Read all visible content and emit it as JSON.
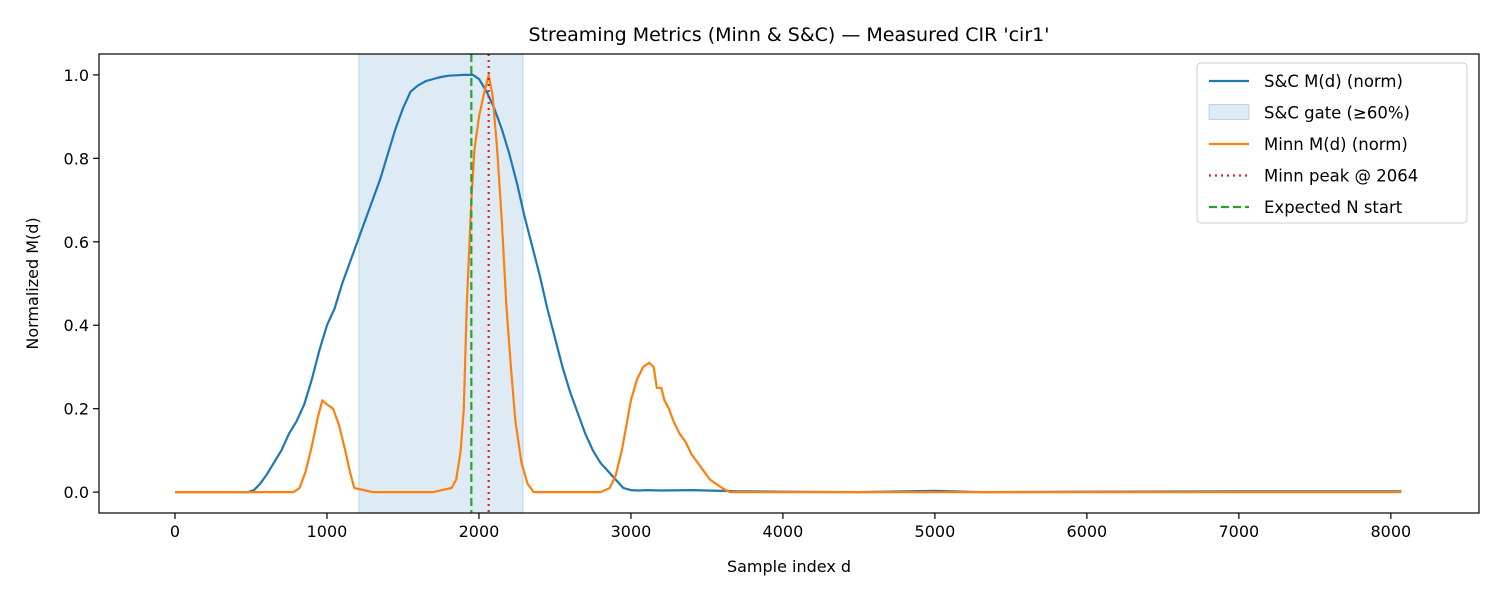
{
  "chart_data": {
    "type": "line",
    "title": "Streaming Metrics (Minn & S&C) — Measured CIR 'cir1'",
    "xlabel": "Sample index d",
    "ylabel": "Normalized M(d)",
    "xlim": [
      -500,
      8580
    ],
    "ylim": [
      -0.05,
      1.05
    ],
    "xticks": [
      0,
      1000,
      2000,
      3000,
      4000,
      5000,
      6000,
      7000,
      8000
    ],
    "yticks": [
      0.0,
      0.2,
      0.4,
      0.6,
      0.8,
      1.0
    ],
    "xtick_labels": [
      "0",
      "1000",
      "2000",
      "3000",
      "4000",
      "5000",
      "6000",
      "7000",
      "8000"
    ],
    "ytick_labels": [
      "0.0",
      "0.2",
      "0.4",
      "0.6",
      "0.8",
      "1.0"
    ],
    "grid": false,
    "legend_position": "top-right",
    "colors": {
      "sc": "#1f77b4",
      "gate": "#1f77b4",
      "minn": "#ff7f0e",
      "minn_peak": "#d62728",
      "expected": "#2ca02c"
    },
    "series": [
      {
        "name": "S&C M(d) (norm)",
        "x": [
          0,
          480,
          520,
          560,
          600,
          650,
          700,
          750,
          800,
          850,
          900,
          950,
          1000,
          1050,
          1100,
          1150,
          1200,
          1250,
          1300,
          1350,
          1400,
          1450,
          1500,
          1550,
          1600,
          1650,
          1700,
          1750,
          1800,
          1850,
          1900,
          1950,
          1960,
          2000,
          2050,
          2100,
          2150,
          2200,
          2250,
          2300,
          2350,
          2400,
          2450,
          2500,
          2550,
          2600,
          2650,
          2700,
          2750,
          2800,
          2850,
          2900,
          2950,
          3000,
          3050,
          3100,
          3200,
          3400,
          3600,
          3700,
          4000,
          4500,
          5000,
          5300,
          6000,
          7000,
          8070
        ],
        "y": [
          0.0,
          0.0,
          0.005,
          0.02,
          0.04,
          0.07,
          0.1,
          0.14,
          0.17,
          0.21,
          0.27,
          0.34,
          0.4,
          0.44,
          0.5,
          0.55,
          0.6,
          0.65,
          0.7,
          0.75,
          0.81,
          0.87,
          0.92,
          0.96,
          0.975,
          0.985,
          0.99,
          0.995,
          0.998,
          0.999,
          1.0,
          1.0,
          1.0,
          0.99,
          0.96,
          0.92,
          0.87,
          0.81,
          0.74,
          0.66,
          0.59,
          0.52,
          0.44,
          0.37,
          0.3,
          0.24,
          0.19,
          0.14,
          0.1,
          0.07,
          0.05,
          0.03,
          0.01,
          0.005,
          0.004,
          0.005,
          0.004,
          0.005,
          0.003,
          0.002,
          0.001,
          0.0,
          0.003,
          0.0,
          0.001,
          0.002,
          0.002
        ]
      },
      {
        "name": "Minn M(d) (norm)",
        "x": [
          0,
          780,
          820,
          860,
          900,
          940,
          970,
          1000,
          1040,
          1080,
          1120,
          1150,
          1180,
          1300,
          1700,
          1820,
          1850,
          1880,
          1900,
          1920,
          1950,
          1970,
          2000,
          2030,
          2050,
          2064,
          2090,
          2120,
          2150,
          2180,
          2210,
          2240,
          2280,
          2320,
          2360,
          2400,
          2450,
          2800,
          2860,
          2900,
          2940,
          2970,
          3000,
          3040,
          3080,
          3120,
          3150,
          3170,
          3200,
          3220,
          3250,
          3280,
          3320,
          3360,
          3400,
          3440,
          3480,
          3520,
          3560,
          3600,
          3650,
          4000,
          5000,
          6000,
          7000,
          8070
        ],
        "y": [
          0.0,
          0.0,
          0.01,
          0.05,
          0.11,
          0.18,
          0.22,
          0.21,
          0.2,
          0.16,
          0.1,
          0.05,
          0.01,
          0.0,
          0.0,
          0.01,
          0.03,
          0.1,
          0.2,
          0.45,
          0.7,
          0.82,
          0.9,
          0.95,
          0.98,
          1.0,
          0.95,
          0.82,
          0.65,
          0.45,
          0.3,
          0.17,
          0.07,
          0.02,
          0.0,
          0.0,
          0.0,
          0.0,
          0.01,
          0.04,
          0.1,
          0.16,
          0.22,
          0.27,
          0.3,
          0.31,
          0.3,
          0.25,
          0.25,
          0.22,
          0.2,
          0.17,
          0.14,
          0.12,
          0.09,
          0.07,
          0.05,
          0.03,
          0.02,
          0.01,
          0.0,
          0.0,
          0.0,
          0.0,
          0.0,
          0.0
        ]
      }
    ],
    "gate": {
      "name": "S&C gate (≥60%)",
      "x_start": 1210,
      "x_end": 2290
    },
    "vlines": [
      {
        "name": "Minn peak @ 2064",
        "x": 2064,
        "style": "dotted",
        "color_key": "minn_peak"
      },
      {
        "name": "Expected N start",
        "x": 1950,
        "style": "dashed",
        "color_key": "expected"
      }
    ],
    "legend": [
      {
        "label": "S&C M(d) (norm)",
        "kind": "line",
        "color_key": "sc"
      },
      {
        "label": "S&C gate (≥60%)",
        "kind": "patch",
        "color_key": "gate"
      },
      {
        "label": "Minn M(d) (norm)",
        "kind": "line",
        "color_key": "minn"
      },
      {
        "label": "Minn peak @ 2064",
        "kind": "dotted",
        "color_key": "minn_peak"
      },
      {
        "label": "Expected N start",
        "kind": "dashed",
        "color_key": "expected"
      }
    ]
  }
}
